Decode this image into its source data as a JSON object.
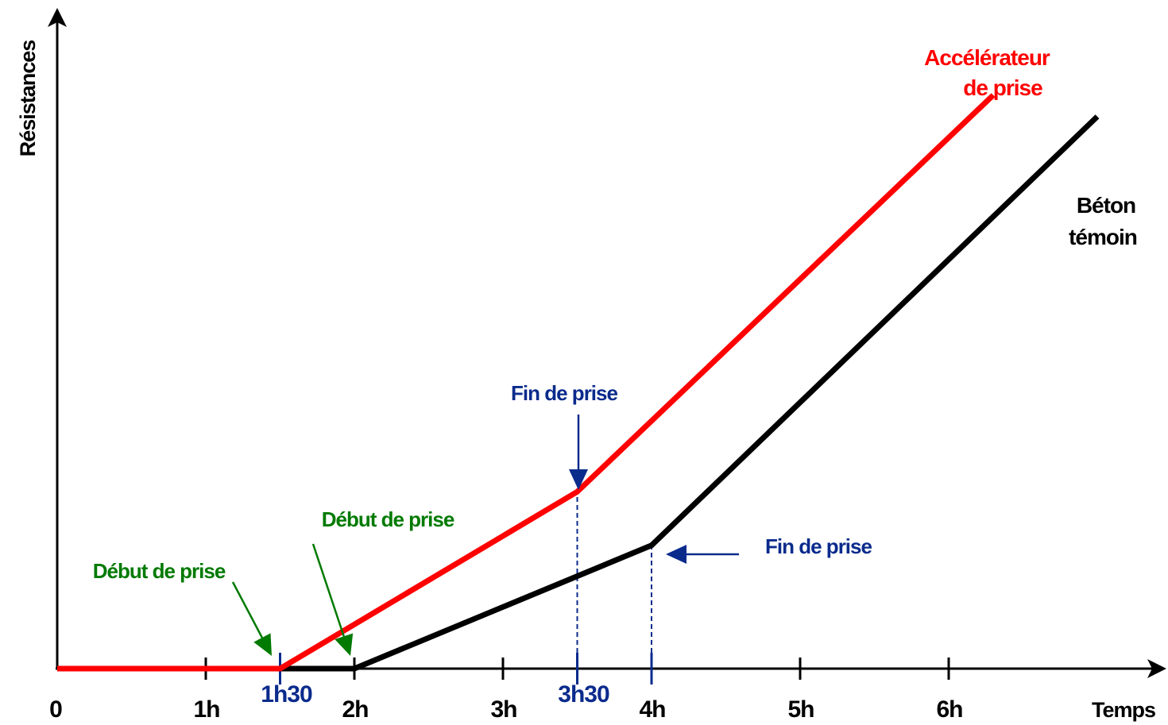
{
  "colors": {
    "axis": "#000000",
    "accelerated": "#ff0000",
    "control": "#000000",
    "start_annotation": "#007a00",
    "end_annotation": "#0a2b8c",
    "marker": "#0a2b8c"
  },
  "chart_data": {
    "type": "line",
    "xlabel": "Temps",
    "ylabel": "Résistances",
    "x_unit": "h",
    "xlim": [
      0,
      7.3
    ],
    "x_ticks": [
      {
        "value": 0,
        "label": "0"
      },
      {
        "value": 1,
        "label": "1h"
      },
      {
        "value": 2,
        "label": "2h"
      },
      {
        "value": 3,
        "label": "3h"
      },
      {
        "value": 4,
        "label": "4h"
      },
      {
        "value": 5,
        "label": "5h"
      },
      {
        "value": 6,
        "label": "6h"
      }
    ],
    "y_ticks_labeled": false,
    "ylim": [
      0,
      10
    ],
    "grid": false,
    "series": [
      {
        "name_lines": [
          "Accélérateur",
          "de prise"
        ],
        "color": "#ff0000",
        "points": [
          [
            0,
            0
          ],
          [
            1.5,
            0
          ],
          [
            3.5,
            3.3
          ],
          [
            6.3,
            10.7
          ]
        ]
      },
      {
        "name_lines": [
          "Béton",
          "témoin"
        ],
        "color": "#000000",
        "points": [
          [
            0,
            0
          ],
          [
            2,
            0
          ],
          [
            4,
            2.3
          ],
          [
            7,
            10.3
          ]
        ]
      }
    ],
    "markers": [
      {
        "x": 1.5,
        "label": "1h30",
        "line_to_y": 0
      },
      {
        "x": 3.5,
        "label": "3h30",
        "line_to_y": 3.3
      },
      {
        "x": 4,
        "label": "",
        "line_to_y": 2.3
      }
    ],
    "annotations": [
      {
        "text": "Début de prise",
        "kind": "start",
        "series": 0,
        "x": 1.5,
        "y": 0
      },
      {
        "text": "Début de prise",
        "kind": "start",
        "series": 1,
        "x": 2,
        "y": 0
      },
      {
        "text": "Fin de prise",
        "kind": "end",
        "series": 0,
        "x": 3.5,
        "y": 3.3
      },
      {
        "text": "Fin de prise",
        "kind": "end",
        "series": 1,
        "x": 4,
        "y": 2.3
      }
    ]
  }
}
